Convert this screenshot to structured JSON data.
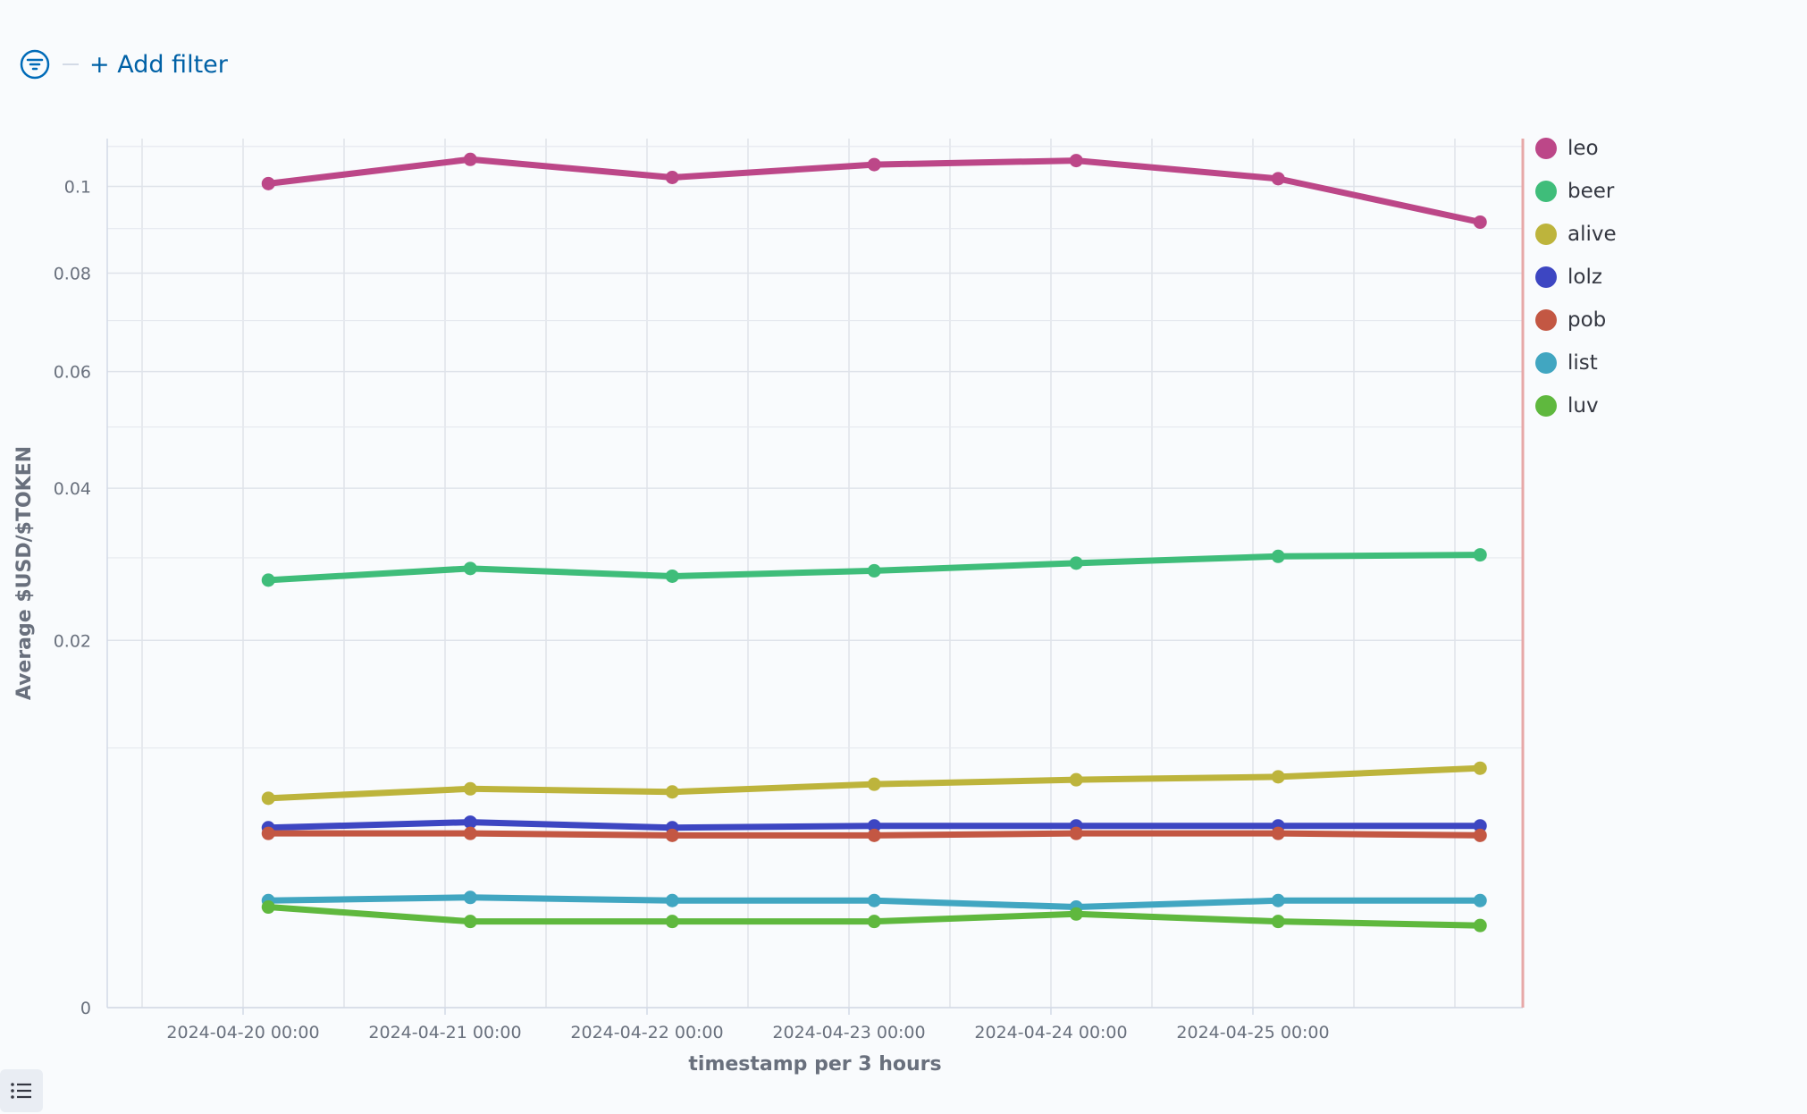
{
  "filter_bar": {
    "add_filter_label": "+ Add filter",
    "filter_icon": "filter-icon"
  },
  "chart_data": {
    "type": "line",
    "xlabel": "timestamp per 3 hours",
    "ylabel": "Average $USD/$TOKEN",
    "y_ticks": [
      0,
      0.02,
      0.04,
      0.06,
      0.08,
      0.1
    ],
    "y_tick_labels": [
      "0",
      "0.02",
      "0.04",
      "0.06",
      "0.08",
      "0.1"
    ],
    "y_scale": "sqrt",
    "x_tick_labels": [
      "2024-04-20 00:00",
      "2024-04-21 00:00",
      "2024-04-22 00:00",
      "2024-04-23 00:00",
      "2024-04-24 00:00",
      "2024-04-25 00:00"
    ],
    "x": [
      "2024-04-20 03:00",
      "2024-04-21 03:00",
      "2024-04-22 03:00",
      "2024-04-23 03:00",
      "2024-04-24 03:00",
      "2024-04-25 03:00",
      "2024-04-26 03:00"
    ],
    "series": [
      {
        "name": "leo",
        "color": "#bc4788",
        "values": [
          0.1007,
          0.1067,
          0.1022,
          0.1054,
          0.1064,
          0.1019,
          0.0915
        ]
      },
      {
        "name": "beer",
        "color": "#3fbd7a",
        "values": [
          0.0271,
          0.0286,
          0.0276,
          0.0283,
          0.0293,
          0.0302,
          0.0304
        ]
      },
      {
        "name": "alive",
        "color": "#bdb43c",
        "values": [
          0.0065,
          0.0071,
          0.0069,
          0.0074,
          0.0077,
          0.0079,
          0.0085
        ]
      },
      {
        "name": "lolz",
        "color": "#3d46c2",
        "values": [
          0.0048,
          0.0051,
          0.0048,
          0.0049,
          0.0049,
          0.0049,
          0.0049
        ]
      },
      {
        "name": "pob",
        "color": "#c35743",
        "values": [
          0.0045,
          0.0045,
          0.0044,
          0.0044,
          0.0045,
          0.0045,
          0.0044
        ]
      },
      {
        "name": "list",
        "color": "#41a6c1",
        "values": [
          0.0017,
          0.0018,
          0.0017,
          0.0017,
          0.0015,
          0.0017,
          0.0017
        ]
      },
      {
        "name": "luv",
        "color": "#5fb83e",
        "values": [
          0.0015,
          0.0011,
          0.0011,
          0.0011,
          0.0013,
          0.0011,
          0.001
        ]
      }
    ],
    "legend_position": "right",
    "grid": true
  },
  "bottom_toggle": {
    "icon": "list-icon"
  }
}
